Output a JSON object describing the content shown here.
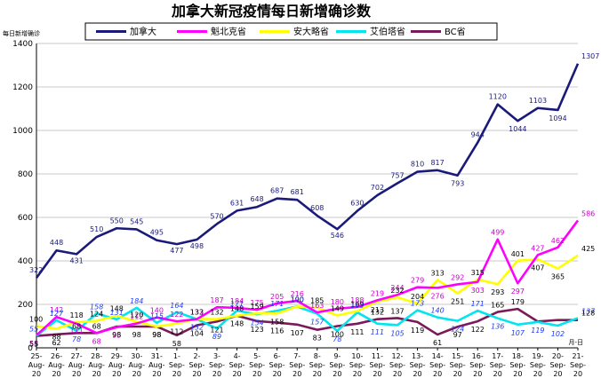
{
  "chart_data": {
    "type": "line",
    "title": "加拿大新冠疫情每日新增确诊数",
    "ylabel": "每日新增确诊",
    "xlabel_unit": "月-日",
    "ylim": [
      0,
      1400
    ],
    "yticks": [
      0,
      200,
      400,
      600,
      800,
      1000,
      1200,
      1400
    ],
    "categories": [
      [
        "25-",
        "Aug-",
        "20"
      ],
      [
        "26-",
        "Aug-",
        "20"
      ],
      [
        "27-",
        "Aug-",
        "20"
      ],
      [
        "28-",
        "Aug-",
        "20"
      ],
      [
        "29-",
        "Aug-",
        "20"
      ],
      [
        "30-",
        "Aug-",
        "20"
      ],
      [
        "31-",
        "Aug-",
        "20"
      ],
      [
        "1-",
        "Sep-",
        "20"
      ],
      [
        "2-",
        "Sep-",
        "20"
      ],
      [
        "3-",
        "Sep-",
        "20"
      ],
      [
        "4-",
        "Sep-",
        "20"
      ],
      [
        "5-",
        "Sep-",
        "20"
      ],
      [
        "6-",
        "Sep-",
        "20"
      ],
      [
        "7-",
        "Sep-",
        "20"
      ],
      [
        "8-",
        "Sep-",
        "20"
      ],
      [
        "9-",
        "Sep-",
        "20"
      ],
      [
        "10-",
        "Sep-",
        "20"
      ],
      [
        "11-",
        "Sep-",
        "20"
      ],
      [
        "12-",
        "Sep-",
        "20"
      ],
      [
        "13-",
        "Sep-",
        "20"
      ],
      [
        "14-",
        "Sep-",
        "20"
      ],
      [
        "15-",
        "Sep-",
        "20"
      ],
      [
        "16-",
        "Sep-",
        "20"
      ],
      [
        "17-",
        "Sep-",
        "20"
      ],
      [
        "18-",
        "Sep-",
        "20"
      ],
      [
        "19-",
        "Sep-",
        "20"
      ],
      [
        "20-",
        "Sep-",
        "20"
      ],
      [
        "21-",
        "Sep-",
        "20"
      ]
    ],
    "series": [
      {
        "name": "加拿大",
        "color": "#1a1a7a",
        "labelColor": "#1a1a7a",
        "italic": false,
        "values": [
          322,
          448,
          431,
          510,
          550,
          545,
          495,
          477,
          498,
          570,
          631,
          648,
          687,
          681,
          608,
          546,
          630,
          702,
          757,
          810,
          817,
          793,
          944,
          1120,
          1044,
          1103,
          1094,
          1307
        ],
        "label_dy": [
          -6,
          -6,
          10,
          -6,
          -6,
          -6,
          -6,
          10,
          10,
          -6,
          -6,
          -6,
          -6,
          -6,
          -6,
          10,
          -6,
          -6,
          -6,
          -6,
          -6,
          12,
          -6,
          -6,
          12,
          -6,
          12,
          -6
        ]
      },
      {
        "name": "魁北克省",
        "color": "#ff00ff",
        "labelColor": "#cc00cc",
        "italic": false,
        "values": [
          58,
          142,
          111,
          68,
          95,
          112,
          140,
          122,
          132,
          187,
          184,
          175,
          205,
          216,
          163,
          180,
          188,
          219,
          244,
          279,
          276,
          292,
          303,
          499,
          297,
          427,
          462,
          586
        ],
        "label_dy": [
          12,
          -5,
          10,
          12,
          12,
          -5,
          -5,
          -5,
          -5,
          -5,
          -5,
          -5,
          -5,
          -5,
          -5,
          -5,
          -5,
          -5,
          -5,
          -5,
          12,
          -5,
          12,
          -5,
          12,
          -5,
          -5,
          -5
        ]
      },
      {
        "name": "安大略省",
        "color": "#ffff00",
        "labelColor": "#000000",
        "italic": false,
        "values": [
          100,
          88,
          118,
          124,
          148,
          120,
          98,
          112,
          133,
          132,
          148,
          159,
          158,
          190,
          185,
          149,
          169,
          213,
          232,
          204,
          313,
          251,
          315,
          293,
          401,
          407,
          365,
          425
        ],
        "label_dy": [
          -5,
          12,
          -5,
          -5,
          -5,
          -5,
          12,
          12,
          -5,
          -5,
          -5,
          -5,
          12,
          -5,
          -5,
          -5,
          -5,
          12,
          -5,
          -5,
          -5,
          12,
          -5,
          12,
          -5,
          12,
          12,
          -5
        ]
      },
      {
        "name": "艾伯塔省",
        "color": "#00e5ee",
        "labelColor": "#1e3cff",
        "italic": true,
        "values": [
          55,
          127,
          78,
          158,
          131,
          184,
          115,
          164,
          132,
          89,
          171,
          154,
          171,
          190,
          157,
          78,
          163,
          111,
          105,
          173,
          140,
          124,
          171,
          136,
          107,
          119,
          102,
          137
        ],
        "label_dy": [
          -5,
          -5,
          12,
          -5,
          -5,
          -5,
          -5,
          -5,
          12,
          12,
          -5,
          12,
          -5,
          -5,
          12,
          12,
          -5,
          12,
          12,
          -5,
          -5,
          12,
          -5,
          12,
          12,
          12,
          12,
          -5
        ]
      },
      {
        "name": "BC省",
        "color": "#7a1a5a",
        "labelColor": "#000000",
        "italic": false,
        "values": [
          55,
          62,
          68,
          68,
          98,
          98,
          98,
          58,
          104,
          121,
          148,
          123,
          116,
          107,
          83,
          100,
          111,
          132,
          137,
          119,
          61,
          97,
          122,
          165,
          179,
          121,
          128,
          128
        ],
        "label_dy": [
          12,
          12,
          -5,
          -5,
          12,
          12,
          12,
          12,
          12,
          12,
          12,
          12,
          12,
          12,
          12,
          12,
          12,
          -5,
          -5,
          12,
          12,
          12,
          12,
          -5,
          -5,
          -5,
          -5,
          -5
        ],
        "hide_labels": [
          25,
          26
        ]
      }
    ]
  }
}
